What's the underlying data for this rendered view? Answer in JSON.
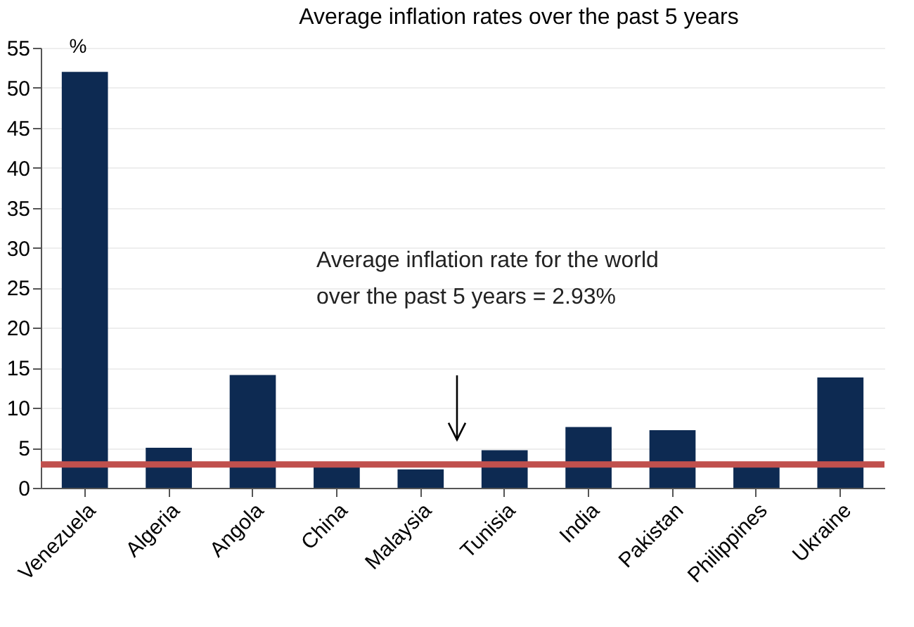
{
  "chart_data": {
    "type": "bar",
    "title": "Average inflation rates over the past 5 years",
    "ylabel": "%",
    "categories": [
      "Venezuela",
      "Algeria",
      "Angola",
      "China",
      "Malaysia",
      "Tunisia",
      "India",
      "Pakistan",
      "Philippines",
      "Ukraine"
    ],
    "values": [
      52,
      5.0,
      14.1,
      2.6,
      2.3,
      4.7,
      7.6,
      7.2,
      2.8,
      13.8
    ],
    "color": "#0d2a52",
    "ylim": [
      0,
      55
    ],
    "yticks": [
      0,
      5,
      10,
      15,
      20,
      25,
      30,
      35,
      40,
      45,
      50,
      55
    ],
    "grid": "y",
    "ref_lines": [
      {
        "axis": "y",
        "value": 2.93,
        "label": null,
        "color": "#c0504d"
      }
    ],
    "annotations": [
      "Average inflation rate for the world\nover the past 5 years = 2.93%"
    ]
  }
}
